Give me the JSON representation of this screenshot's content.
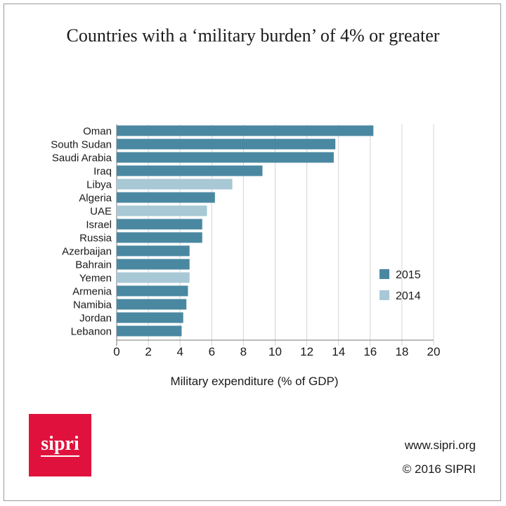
{
  "chart_data": {
    "type": "bar",
    "orientation": "horizontal",
    "title": "Countries with a ‘military burden’ of 4% or greater",
    "xlabel": "Military expenditure (% of GDP)",
    "ylabel": "",
    "xlim": [
      0,
      20
    ],
    "xticks": [
      "0",
      "2",
      "4",
      "6",
      "8",
      "10",
      "12",
      "14",
      "16",
      "18",
      "20"
    ],
    "grid": "vertical",
    "legend_position": "right",
    "categories": [
      "Oman",
      "South Sudan",
      "Saudi Arabia",
      "Iraq",
      "Libya",
      "Algeria",
      "UAE",
      "Israel",
      "Russia",
      "Azerbaijan",
      "Bahrain",
      "Yemen",
      "Armenia",
      "Namibia",
      "Jordan",
      "Lebanon"
    ],
    "values": [
      16.2,
      13.8,
      13.7,
      9.2,
      7.3,
      6.2,
      5.7,
      5.4,
      5.4,
      4.6,
      4.6,
      4.6,
      4.5,
      4.4,
      4.2,
      4.1
    ],
    "years": [
      "2015",
      "2015",
      "2015",
      "2015",
      "2014",
      "2015",
      "2014",
      "2015",
      "2015",
      "2015",
      "2015",
      "2014",
      "2015",
      "2015",
      "2015",
      "2015"
    ],
    "legend": [
      {
        "label": "2015",
        "color": "#4a88a2"
      },
      {
        "label": "2014",
        "color": "#a8c8d6"
      }
    ]
  },
  "logo": {
    "text": "sipri"
  },
  "footer": {
    "url": "www.sipri.org",
    "copyright": "© 2016 SIPRI"
  }
}
